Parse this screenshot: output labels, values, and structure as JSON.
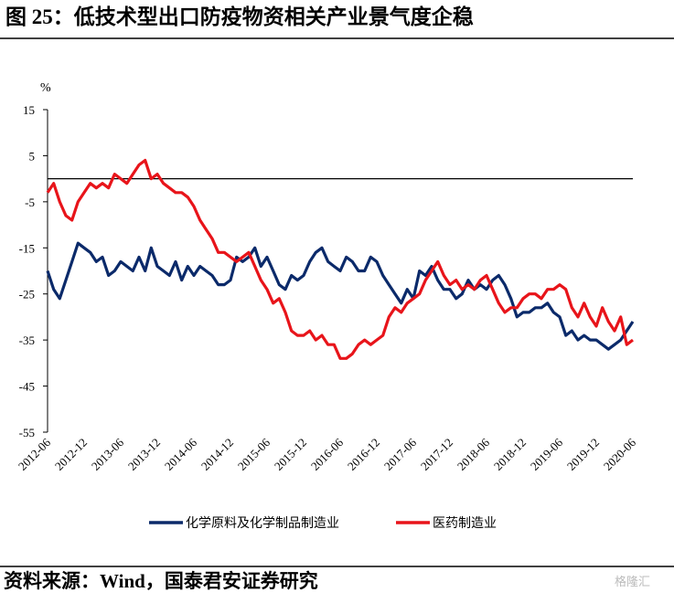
{
  "chart_data": {
    "type": "line",
    "title": "图 25：低技术型出口防疫物资相关产业景气度企稳",
    "y_label": "%",
    "source": "资料来源：Wind，国泰君安证券研究",
    "watermark": "格隆汇",
    "categories": [
      "2012-06",
      null,
      null,
      null,
      null,
      null,
      "2012-12",
      null,
      null,
      null,
      null,
      null,
      "2013-06",
      null,
      null,
      null,
      null,
      null,
      "2013-12",
      null,
      null,
      null,
      null,
      null,
      "2014-06",
      null,
      null,
      null,
      null,
      null,
      "2014-12",
      null,
      null,
      null,
      null,
      null,
      "2015-06",
      null,
      null,
      null,
      null,
      null,
      "2015-12",
      null,
      null,
      null,
      null,
      null,
      "2016-06",
      null,
      null,
      null,
      null,
      null,
      "2016-12",
      null,
      null,
      null,
      null,
      null,
      "2017-06",
      null,
      null,
      null,
      null,
      null,
      "2017-12",
      null,
      null,
      null,
      null,
      null,
      "2018-06",
      null,
      null,
      null,
      null,
      null,
      "2018-12",
      null,
      null,
      null,
      null,
      null,
      "2019-06",
      null,
      null,
      null,
      null,
      null,
      "2019-12",
      null,
      null,
      null,
      null,
      null,
      "2020-06"
    ],
    "series": [
      {
        "name": "化学原料及化学制品制造业",
        "color": "#0b2a6a",
        "values": [
          -20,
          -24,
          -26,
          -22,
          -18,
          -14,
          -15,
          -16,
          -18,
          -17,
          -21,
          -20,
          -18,
          -19,
          -20,
          -17,
          -20,
          -15,
          -19,
          -20,
          -21,
          -18,
          -22,
          -19,
          -21,
          -19,
          -20,
          -21,
          -23,
          -23,
          -22,
          -17,
          -18,
          -17,
          -15,
          -19,
          -17,
          -20,
          -23,
          -24,
          -21,
          -22,
          -21,
          -18,
          -16,
          -15,
          -18,
          -19,
          -20,
          -17,
          -18,
          -20,
          -20,
          -17,
          -18,
          -21,
          -23,
          -25,
          -27,
          -24,
          -26,
          -20,
          -21,
          -19,
          -22,
          -24,
          -24,
          -26,
          -25,
          -22,
          -24,
          -23,
          -24,
          -22,
          -21,
          -23,
          -26,
          -30,
          -29,
          -29,
          -28,
          -28,
          -27,
          -29,
          -30,
          -34,
          -33,
          -35,
          -34,
          -35,
          -35,
          -36,
          -37,
          -36,
          -35,
          -33,
          -31
        ]
      },
      {
        "name": "医药制造业",
        "color": "#e8141a",
        "values": [
          -3,
          -1,
          -5,
          -8,
          -9,
          -5,
          -3,
          -1,
          -2,
          -1,
          -2,
          1,
          0,
          -1,
          1,
          3,
          4,
          0,
          1,
          -1,
          -2,
          -3,
          -3,
          -4,
          -6,
          -9,
          -11,
          -13,
          -16,
          -16,
          -17,
          -18,
          -17,
          -16,
          -19,
          -22,
          -24,
          -27,
          -26,
          -29,
          -33,
          -34,
          -34,
          -33,
          -35,
          -34,
          -36,
          -36,
          -39,
          -39,
          -38,
          -36,
          -35,
          -36,
          -35,
          -34,
          -30,
          -28,
          -29,
          -27,
          -26,
          -25,
          -22,
          -20,
          -18,
          -21,
          -23,
          -22,
          -24,
          -23,
          -24,
          -22,
          -21,
          -24,
          -27,
          -29,
          -28,
          -28,
          -26,
          -25,
          -25,
          -26,
          -24,
          -24,
          -23,
          -24,
          -28,
          -30,
          -27,
          -30,
          -32,
          -28,
          -31,
          -33,
          -30,
          -36,
          -35
        ]
      }
    ],
    "ylim": [
      -55,
      15
    ],
    "yticks": [
      -55,
      -45,
      -35,
      -25,
      -15,
      -5,
      5,
      15
    ]
  }
}
